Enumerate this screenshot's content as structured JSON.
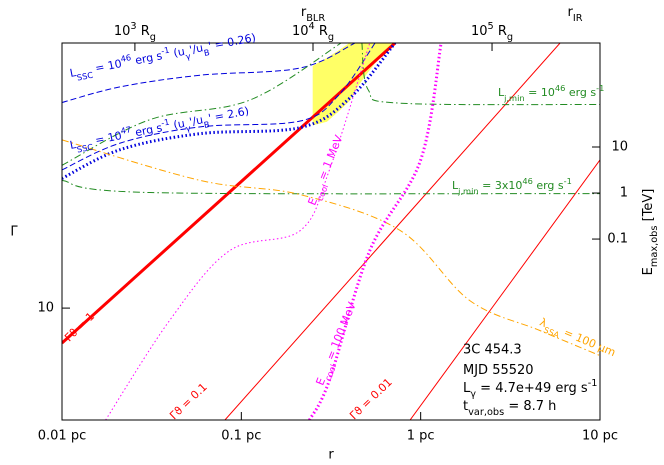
{
  "chart_data": {
    "type": "line",
    "xlabel": "r",
    "ylabel": "Γ",
    "y2label": [
      [
        "E"
      ],
      [
        "max,obs",
        "sub"
      ],
      [
        " [TeV]"
      ]
    ],
    "xlog": true,
    "ylog": true,
    "y2log": true,
    "xlim": [
      0.01,
      10
    ],
    "ylim": [
      5.57,
      40
    ],
    "y2lim": [
      1.17e-05,
      1820
    ],
    "xticks": [
      {
        "value": 0.01,
        "label": "0.01 pc"
      },
      {
        "value": 0.1,
        "label": "0.1 pc"
      },
      {
        "value": 1,
        "label": "1 pc"
      },
      {
        "value": 10,
        "label": "10 pc"
      }
    ],
    "yticks": [
      10
    ],
    "y2ticks": [
      10,
      1,
      0.1
    ],
    "top_ticks": [
      {
        "value": 0.0255,
        "label": [
          [
            "10"
          ],
          [
            "3",
            "sup"
          ],
          [
            " R"
          ],
          [
            "g",
            "sub"
          ]
        ]
      },
      {
        "value": 0.251,
        "label": [
          [
            "10"
          ],
          [
            "4",
            "sup"
          ],
          [
            " R"
          ],
          [
            "g",
            "sub"
          ]
        ]
      },
      {
        "value": 2.5,
        "label": [
          [
            "10"
          ],
          [
            "5",
            "sup"
          ],
          [
            " R"
          ],
          [
            "g",
            "sub"
          ]
        ]
      }
    ],
    "top_markers": [
      {
        "value": 0.251,
        "label": [
          [
            "r"
          ],
          [
            "BLR",
            "sub"
          ]
        ]
      },
      {
        "value": 7.26,
        "label": [
          [
            "r"
          ],
          [
            "IR",
            "sub"
          ]
        ]
      }
    ],
    "fill_between": {
      "color": "#ffff66",
      "x": [
        0.25,
        0.3,
        0.35,
        0.4,
        0.45,
        0.5,
        0.557,
        0.72
      ],
      "lower": [
        26,
        26.5,
        28,
        29.5,
        32,
        34,
        36,
        40
      ],
      "upper": [
        35.5,
        37,
        38.5,
        40,
        40,
        40,
        40,
        40
      ]
    },
    "series": [
      {
        "color": "#ff0000",
        "width": 3,
        "style": "solid",
        "x": [
          0.01,
          0.72
        ],
        "values": [
          8.33,
          40
        ]
      },
      {
        "color": "#ff0000",
        "width": 1,
        "style": "solid",
        "x": [
          0.081,
          5.99
        ],
        "values": [
          5.57,
          40
        ]
      },
      {
        "color": "#ff0000",
        "width": 1,
        "style": "solid",
        "x": [
          0.873,
          10
        ],
        "values": [
          5.57,
          21.7
        ]
      },
      {
        "color": "#0000dd",
        "width": 3,
        "style": "dotted",
        "x": [
          0.01,
          0.0211,
          0.0589,
          0.213,
          0.403,
          0.72
        ],
        "values": [
          19.7,
          22.9,
          24.9,
          25.7,
          30,
          40
        ]
      },
      {
        "color": "#0000dd",
        "width": 1,
        "style": "dashed",
        "x": [
          0.01,
          0.0211,
          0.0589,
          0.213,
          0.35,
          0.557
        ],
        "values": [
          20.6,
          23.7,
          25.8,
          26.6,
          30.5,
          40
        ]
      },
      {
        "color": "#0000dd",
        "width": 1,
        "style": "dashed",
        "x": [
          0.01,
          0.0211,
          0.0589,
          0.213,
          0.43
        ],
        "values": [
          29.3,
          31.8,
          33.8,
          35.1,
          40
        ]
      },
      {
        "color": "#228b22",
        "width": 1,
        "style": "dashdot",
        "x": [
          0.01,
          0.031,
          0.112,
          0.36,
          null,
          0.47,
          0.51,
          0.77,
          10
        ],
        "values": [
          21.1,
          26.8,
          29.7,
          40,
          null,
          40,
          31.3,
          29.2,
          29
        ]
      },
      {
        "color": "#228b22",
        "width": 1,
        "style": "dashdot",
        "x": [
          0.01,
          0.031,
          10
        ],
        "values": [
          19.5,
          18.3,
          18.2
        ]
      },
      {
        "color": "#ffa500",
        "width": 1,
        "style": "dashdot",
        "x": [
          0.01,
          0.0589,
          0.213,
          0.77,
          1.88,
          4.6,
          10
        ],
        "values": [
          24.1,
          19.5,
          18.1,
          15,
          10.4,
          8.9,
          7.8
        ]
      },
      {
        "color": "#ff00ff",
        "width": 1,
        "style": "dotted",
        "x": [
          0.0175,
          0.04,
          0.086,
          0.213,
          0.31,
          0.52
        ],
        "values": [
          5.57,
          9.4,
          13.5,
          15,
          20.6,
          40
        ]
      },
      {
        "color": "#ff00ff",
        "width": 3,
        "style": "dotted",
        "x": [
          0.24,
          0.31,
          0.52,
          1.0,
          1.3
        ],
        "values": [
          5.57,
          6.86,
          13.5,
          21.7,
          40
        ]
      }
    ],
    "annotations": [
      {
        "color": "#0000dd",
        "parts": [
          [
            "L"
          ],
          [
            "SSC",
            "sub"
          ],
          [
            " = 10"
          ],
          [
            "46",
            "sup"
          ],
          [
            " erg s"
          ],
          [
            "-1",
            "sup"
          ],
          [
            "  (u"
          ],
          [
            "γ",
            "sub"
          ],
          [
            "'/u"
          ],
          [
            "B",
            "sub"
          ],
          [
            "' = 0.26)"
          ]
        ]
      },
      {
        "color": "#0000dd",
        "parts": [
          [
            "L"
          ],
          [
            "SSC",
            "sub"
          ],
          [
            " = 10"
          ],
          [
            "47",
            "sup"
          ],
          [
            " erg s"
          ],
          [
            "-1",
            "sup"
          ],
          [
            "  (u"
          ],
          [
            "γ",
            "sub"
          ],
          [
            "'/u"
          ],
          [
            "B",
            "sub"
          ],
          [
            "' = 2.6)"
          ]
        ]
      },
      {
        "color": "#228b22",
        "parts": [
          [
            "L"
          ],
          [
            "j,min",
            "sub"
          ],
          [
            " = 10"
          ],
          [
            "46",
            "sup"
          ],
          [
            " erg s"
          ],
          [
            "-1",
            "sup"
          ]
        ]
      },
      {
        "color": "#228b22",
        "parts": [
          [
            "L"
          ],
          [
            "j,min",
            "sub"
          ],
          [
            " = 3x10"
          ],
          [
            "46",
            "sup"
          ],
          [
            " erg s"
          ],
          [
            "-1",
            "sup"
          ]
        ]
      },
      {
        "color": "#ff00ff",
        "parts": [
          [
            "E"
          ],
          [
            "cool",
            "sub"
          ],
          [
            " = 1 MeV"
          ]
        ]
      },
      {
        "color": "#ff00ff",
        "parts": [
          [
            "E"
          ],
          [
            "cool",
            "sub"
          ],
          [
            " = 100 MeV"
          ]
        ]
      },
      {
        "color": "#ffa500",
        "parts": [
          [
            "λ"
          ],
          [
            "SSA",
            "sub"
          ],
          [
            " = 100 μm"
          ]
        ]
      },
      {
        "color": "#ff0000",
        "parts": [
          [
            "Γϑ = 1"
          ]
        ]
      },
      {
        "color": "#ff0000",
        "parts": [
          [
            "Γϑ = 0.1"
          ]
        ]
      },
      {
        "color": "#ff0000",
        "parts": [
          [
            "Γϑ = 0.01"
          ]
        ]
      }
    ],
    "info": {
      "title": "3C 454.3",
      "lines": [
        [
          [
            "MJD 55520"
          ]
        ],
        [
          [
            "L"
          ],
          [
            "γ",
            "sub"
          ],
          [
            " = 4.7e+49 erg s"
          ],
          [
            "-1",
            "sup"
          ]
        ],
        [
          [
            "t"
          ],
          [
            "var,obs",
            "sub"
          ],
          [
            " = 8.7 h"
          ]
        ]
      ]
    }
  }
}
